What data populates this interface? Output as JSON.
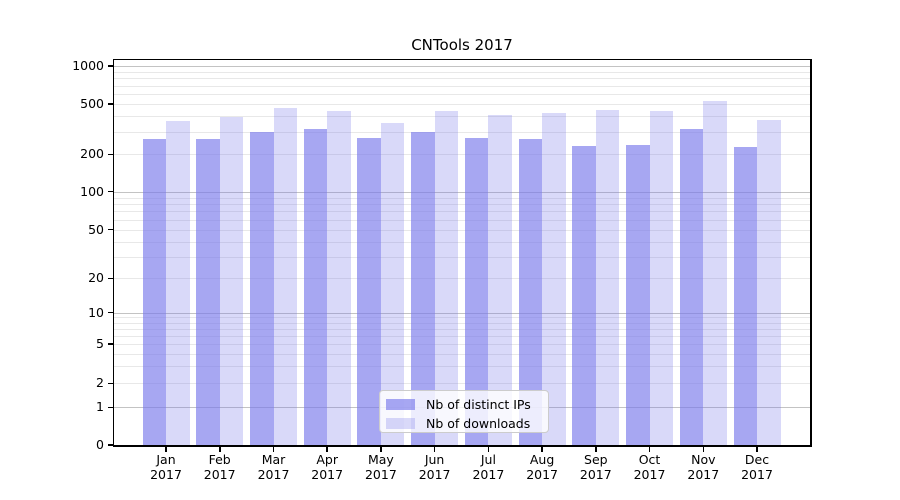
{
  "chart_data": {
    "type": "bar",
    "title": "CNTools 2017",
    "categories": [
      "Jan 2017",
      "Feb 2017",
      "Mar 2017",
      "Apr 2017",
      "May 2017",
      "Jun 2017",
      "Jul 2017",
      "Aug 2017",
      "Sep 2017",
      "Oct 2017",
      "Nov 2017",
      "Dec 2017"
    ],
    "series": [
      {
        "name": "Nb of distinct IPs",
        "base_color": "#7878eb",
        "alpha": 0.65,
        "rendered_color": "#a7a7f1",
        "values": [
          265,
          265,
          299,
          318,
          271,
          299,
          268,
          265,
          231,
          237,
          315,
          229
        ]
      },
      {
        "name": "Nb of downloads",
        "base_color": "#7878eb",
        "alpha": 0.28,
        "rendered_color": "#d9d9f9",
        "values": [
          370,
          392,
          466,
          444,
          355,
          438,
          412,
          425,
          446,
          438,
          525,
          374
        ]
      }
    ],
    "xlabel": "",
    "ylabel": "",
    "yscale": "symlog",
    "y_ticks": [
      0,
      1,
      2,
      5,
      10,
      20,
      50,
      100,
      200,
      500,
      1000
    ],
    "grid": true,
    "grid_which": "both",
    "legend_position": "lower center"
  },
  "colors": {
    "grid_minor": "#e8e8e8",
    "grid_major": "#c3c3c3",
    "spine": "#000000",
    "background": "#ffffff"
  }
}
